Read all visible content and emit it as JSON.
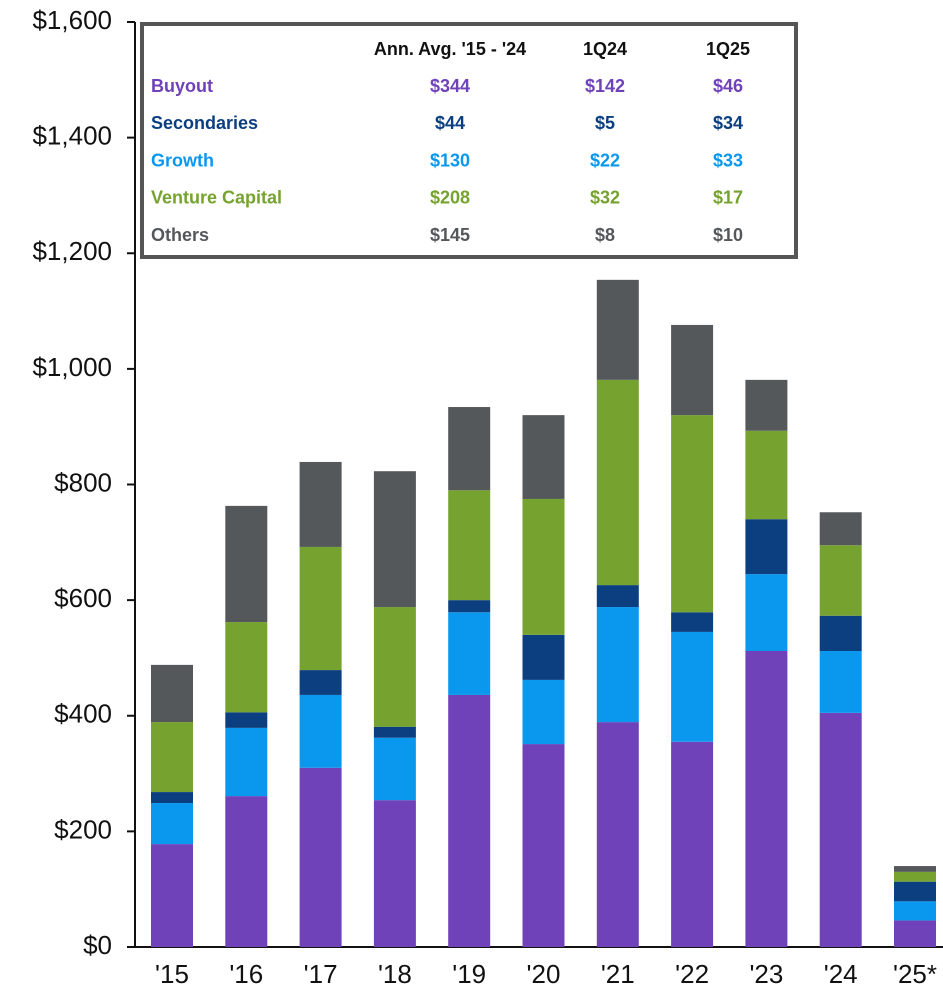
{
  "chart_data": {
    "type": "stacked_bar",
    "categories": [
      "'15",
      "'16",
      "'17",
      "'18",
      "'19",
      "'20",
      "'21",
      "'22",
      "'23",
      "'24",
      "'25*"
    ],
    "series": [
      {
        "name": "Buyout",
        "color": "#6f42b9",
        "values": [
          178,
          261,
          310,
          254,
          436,
          351,
          389,
          355,
          512,
          405,
          46
        ]
      },
      {
        "name": "Growth",
        "color": "#0a98ee",
        "values": [
          71,
          118,
          126,
          108,
          143,
          111,
          199,
          190,
          133,
          107,
          33
        ]
      },
      {
        "name": "Secondaries",
        "color": "#0c3f80",
        "values": [
          19,
          27,
          43,
          19,
          21,
          78,
          38,
          34,
          95,
          61,
          34
        ]
      },
      {
        "name": "Venture Capital",
        "color": "#76a22f",
        "values": [
          121,
          156,
          213,
          207,
          190,
          235,
          355,
          341,
          153,
          122,
          17
        ]
      },
      {
        "name": "Others",
        "color": "#55585b",
        "values": [
          99,
          201,
          147,
          235,
          144,
          145,
          173,
          156,
          88,
          57,
          10
        ]
      }
    ],
    "ylim": [
      0,
      1600
    ],
    "yticks": [
      {
        "value": 0,
        "label": "$0"
      },
      {
        "value": 200,
        "label": "$200"
      },
      {
        "value": 400,
        "label": "$400"
      },
      {
        "value": 600,
        "label": "$600"
      },
      {
        "value": 800,
        "label": "$800"
      },
      {
        "value": 1000,
        "label": "$1,000"
      },
      {
        "value": 1200,
        "label": "$1,200"
      },
      {
        "value": 1400,
        "label": "$1,400"
      },
      {
        "value": 1600,
        "label": "$1,600"
      }
    ]
  },
  "table": {
    "columns": [
      "Ann. Avg. '15 - '24",
      "1Q24",
      "1Q25"
    ],
    "rows": [
      {
        "series": 0,
        "cells": [
          "$344",
          "$142",
          "$46"
        ]
      },
      {
        "series": 2,
        "cells": [
          "$44",
          "$5",
          "$34"
        ]
      },
      {
        "series": 1,
        "cells": [
          "$130",
          "$22",
          "$33"
        ]
      },
      {
        "series": 3,
        "cells": [
          "$208",
          "$32",
          "$17"
        ]
      },
      {
        "series": 4,
        "cells": [
          "$145",
          "$8",
          "$10"
        ]
      }
    ]
  }
}
